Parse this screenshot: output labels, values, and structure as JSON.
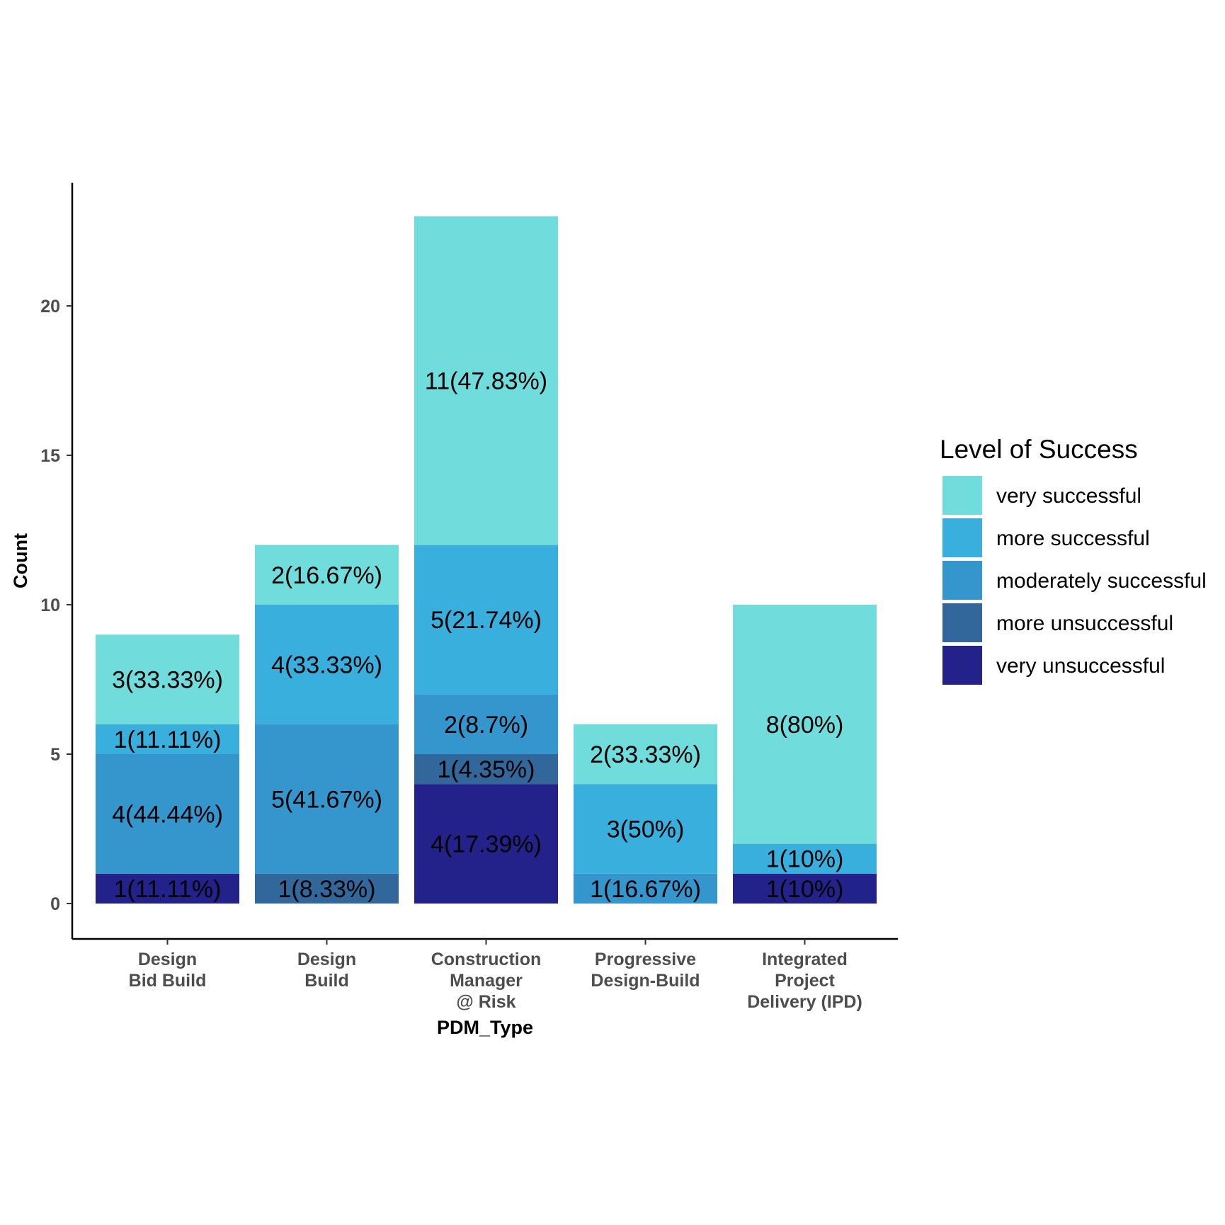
{
  "chart_data": {
    "type": "bar",
    "stacked": true,
    "xlabel": "PDM_Type",
    "ylabel": "Count",
    "ylim": [
      0,
      24
    ],
    "yticks": [
      0,
      5,
      10,
      15,
      20
    ],
    "grid": false,
    "legend_position": "right",
    "categories": [
      [
        "Design",
        "Bid Build"
      ],
      [
        "Design",
        "Build"
      ],
      [
        "Construction",
        "Manager",
        "@ Risk"
      ],
      [
        "Progressive",
        "Design-Build"
      ],
      [
        "Integrated",
        "Project",
        "Delivery (IPD)"
      ]
    ],
    "legend_title": "Level of Success",
    "series": [
      {
        "name": "very unsuccessful",
        "color": "#23218a",
        "values": [
          1,
          0,
          4,
          0,
          1
        ],
        "labels": [
          "1(11.11%)",
          "",
          "4(17.39%)",
          "",
          "1(10%)"
        ]
      },
      {
        "name": "more unsuccessful",
        "color": "#32679b",
        "values": [
          0,
          1,
          1,
          0,
          0
        ],
        "labels": [
          "",
          "1(8.33%)",
          "1(4.35%)",
          "",
          ""
        ]
      },
      {
        "name": "moderately successful",
        "color": "#3596cd",
        "values": [
          4,
          5,
          2,
          1,
          0
        ],
        "labels": [
          "4(44.44%)",
          "5(41.67%)",
          "2(8.7%)",
          "1(16.67%)",
          ""
        ]
      },
      {
        "name": "more successful",
        "color": "#38afdc",
        "values": [
          1,
          4,
          5,
          3,
          1
        ],
        "labels": [
          "1(11.11%)",
          "4(33.33%)",
          "5(21.74%)",
          "3(50%)",
          "1(10%)"
        ]
      },
      {
        "name": "very successful",
        "color": "#70dcdc",
        "values": [
          3,
          2,
          11,
          2,
          8
        ],
        "labels": [
          "3(33.33%)",
          "2(16.67%)",
          "11(47.83%)",
          "2(33.33%)",
          "8(80%)"
        ]
      }
    ]
  }
}
